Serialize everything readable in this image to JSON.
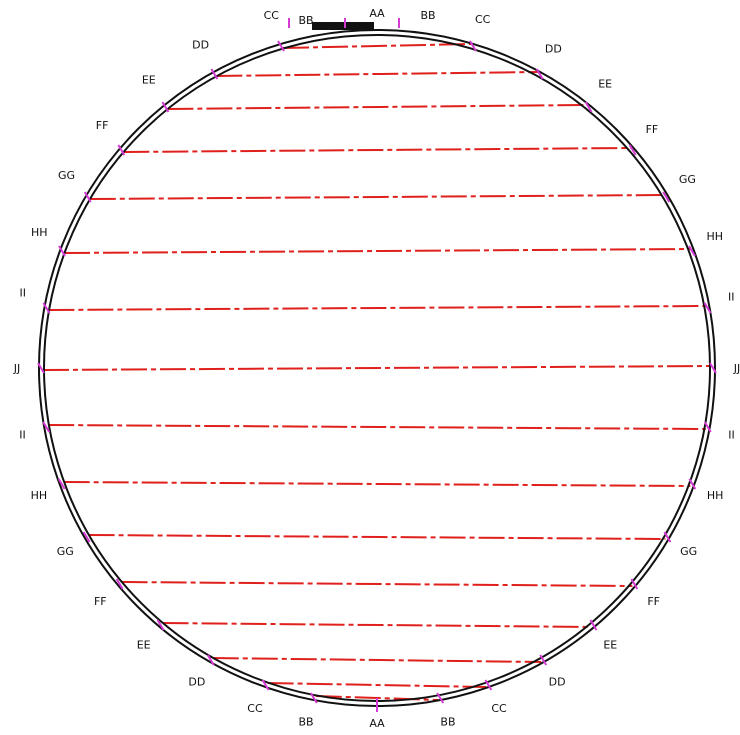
{
  "labels": {
    "top": "AA",
    "bottom": "AA",
    "rows": [
      {
        "left": "CC",
        "right": "CC"
      },
      {
        "left": "DD",
        "right": "DD"
      },
      {
        "left": "EE",
        "right": "EE"
      },
      {
        "left": "FF",
        "right": "FF"
      },
      {
        "left": "GG",
        "right": "GG"
      },
      {
        "left": "HH",
        "right": "HH"
      },
      {
        "left": "II",
        "right": "II"
      },
      {
        "left": "JJ",
        "right": "JJ"
      },
      {
        "left": "II",
        "right": "II"
      },
      {
        "left": "HH",
        "right": "HH"
      },
      {
        "left": "GG",
        "right": "GG"
      },
      {
        "left": "FF",
        "right": "FF"
      },
      {
        "left": "EE",
        "right": "EE"
      },
      {
        "left": "DD",
        "right": "DD"
      },
      {
        "left": "CC",
        "right": "CC"
      },
      {
        "left": "BB",
        "right": "BB"
      }
    ],
    "top_bb_left": "BB",
    "top_bb_right": "BB"
  },
  "colors": {
    "ring": "#111111",
    "chord": "#e0201c",
    "tick": "#d63ad6"
  }
}
